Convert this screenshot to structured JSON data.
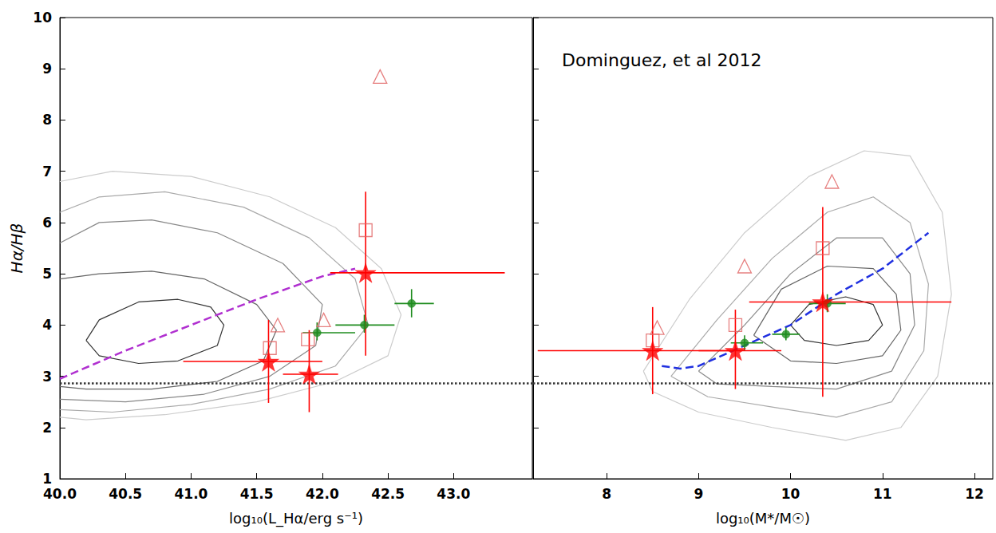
{
  "chart_data": [
    {
      "type": "scatter",
      "xlabel": "log₁₀(L_Hα/erg s⁻¹)",
      "ylabel": "Hα/Hβ",
      "xlim": [
        40.0,
        43.6
      ],
      "xticks": [
        {
          "value": 40,
          "label": "40.0"
        },
        40.5,
        {
          "value": 41,
          "label": "41.0"
        },
        41.5,
        {
          "value": 42,
          "label": "42.0"
        },
        42.5,
        {
          "value": 43,
          "label": "43.0"
        }
      ],
      "ylim": [
        1,
        10
      ],
      "yticks": [
        1,
        2,
        3,
        4,
        5,
        6,
        7,
        8,
        9,
        10
      ],
      "grid": false,
      "series": [
        {
          "type": "line",
          "line_style": "solid",
          "color": "#cccccc",
          "x": [
            40.0,
            40.4,
            41.0,
            41.6,
            42.1,
            42.45,
            42.6,
            42.5,
            42.1,
            41.5,
            40.8,
            40.2,
            40.0
          ],
          "values": [
            6.8,
            7.0,
            6.9,
            6.5,
            5.9,
            5.1,
            4.2,
            3.4,
            2.9,
            2.5,
            2.25,
            2.15,
            2.2
          ]
        },
        {
          "type": "line",
          "line_style": "solid",
          "color": "#aaaaaa",
          "x": [
            40.0,
            40.3,
            40.8,
            41.4,
            41.9,
            42.25,
            42.35,
            42.1,
            41.6,
            41.0,
            40.4,
            40.0
          ],
          "values": [
            6.2,
            6.5,
            6.6,
            6.3,
            5.7,
            4.9,
            4.0,
            3.2,
            2.75,
            2.45,
            2.3,
            2.35
          ]
        },
        {
          "type": "line",
          "line_style": "solid",
          "color": "#888888",
          "x": [
            40.0,
            40.3,
            40.7,
            41.2,
            41.7,
            42.0,
            41.95,
            41.6,
            41.1,
            40.5,
            40.0
          ],
          "values": [
            5.6,
            6.0,
            6.05,
            5.8,
            5.2,
            4.4,
            3.6,
            3.0,
            2.65,
            2.5,
            2.55
          ]
        },
        {
          "type": "line",
          "line_style": "solid",
          "color": "#666666",
          "x": [
            40.0,
            40.3,
            40.7,
            41.1,
            41.5,
            41.65,
            41.55,
            41.2,
            40.7,
            40.2,
            40.0
          ],
          "values": [
            4.9,
            5.0,
            5.05,
            4.9,
            4.4,
            3.9,
            3.3,
            2.9,
            2.75,
            2.75,
            2.8
          ]
        },
        {
          "type": "line",
          "line_style": "solid",
          "color": "#333333",
          "x": [
            40.2,
            40.3,
            40.6,
            40.9,
            41.15,
            41.25,
            41.2,
            40.9,
            40.6,
            40.3,
            40.2
          ],
          "values": [
            3.7,
            4.1,
            4.45,
            4.5,
            4.35,
            4.0,
            3.6,
            3.3,
            3.25,
            3.4,
            3.7
          ]
        },
        {
          "type": "line",
          "line_style": "dotted",
          "color": "#333333",
          "x": [
            40.0,
            43.6
          ],
          "values": [
            2.86,
            2.86
          ]
        },
        {
          "type": "line",
          "line_style": "dashed",
          "color": "#b030d0",
          "x": [
            40.0,
            40.5,
            41.0,
            41.5,
            42.0,
            42.25
          ],
          "values": [
            2.95,
            3.5,
            4.0,
            4.5,
            4.95,
            5.1
          ]
        },
        {
          "type": "scatter",
          "marker": "square_open",
          "color": "#e06060",
          "x": [
            41.6,
            41.89,
            42.33
          ],
          "values": [
            3.55,
            3.72,
            5.85
          ]
        },
        {
          "type": "scatter",
          "marker": "triangle_open",
          "color": "#e06060",
          "x": [
            41.66,
            42.01,
            42.44
          ],
          "values": [
            4.0,
            4.1,
            8.85
          ]
        },
        {
          "type": "scatter",
          "marker": "circle",
          "color": "#1e8c1e",
          "x": [
            41.96,
            42.32,
            42.68
          ],
          "values": [
            3.85,
            4.0,
            4.42
          ],
          "xerr": [
            [
              41.85,
              42.25
            ],
            [
              42.1,
              42.55
            ],
            [
              42.55,
              42.85
            ]
          ],
          "yerr": [
            [
              3.7,
              4.05
            ],
            [
              3.85,
              4.2
            ],
            [
              4.15,
              4.7
            ]
          ]
        },
        {
          "type": "scatter",
          "marker": "star",
          "color": "#ff0000",
          "x": [
            41.59,
            41.9,
            42.33
          ],
          "values": [
            3.29,
            3.04,
            5.02
          ],
          "xerr": [
            [
              40.94,
              42.0
            ],
            [
              41.7,
              42.12
            ],
            [
              42.06,
              43.39
            ]
          ],
          "yerr": [
            [
              2.48,
              4.1
            ],
            [
              2.3,
              3.9
            ],
            [
              3.4,
              6.6
            ]
          ]
        }
      ]
    },
    {
      "type": "scatter",
      "xlabel": "log₁₀(M*/M☉)",
      "annotation": "Dominguez, et al 2012",
      "xlim": [
        7.2,
        12.2
      ],
      "xticks": [
        8,
        9,
        10,
        11,
        12
      ],
      "ylim": [
        1,
        10
      ],
      "yticks": [
        1,
        2,
        3,
        4,
        5,
        6,
        7,
        8,
        9,
        10
      ],
      "grid": false,
      "tick_labels": "x",
      "series": [
        {
          "type": "line",
          "line_style": "solid",
          "color": "#cccccc",
          "x": [
            8.4,
            8.9,
            9.5,
            10.2,
            10.8,
            11.3,
            11.65,
            11.75,
            11.6,
            11.2,
            10.6,
            9.8,
            9.0,
            8.5,
            8.4
          ],
          "values": [
            3.1,
            4.5,
            5.8,
            6.9,
            7.4,
            7.3,
            6.2,
            4.6,
            3.0,
            2.0,
            1.75,
            2.0,
            2.3,
            2.7,
            3.1
          ]
        },
        {
          "type": "line",
          "line_style": "solid",
          "color": "#aaaaaa",
          "x": [
            8.7,
            9.2,
            9.8,
            10.4,
            10.9,
            11.3,
            11.5,
            11.45,
            11.1,
            10.5,
            9.8,
            9.1,
            8.7
          ],
          "values": [
            3.0,
            4.1,
            5.3,
            6.2,
            6.5,
            6.0,
            4.8,
            3.5,
            2.5,
            2.2,
            2.4,
            2.6,
            3.0
          ]
        },
        {
          "type": "line",
          "line_style": "solid",
          "color": "#888888",
          "x": [
            9.0,
            9.5,
            10.0,
            10.5,
            11.0,
            11.3,
            11.35,
            11.1,
            10.5,
            9.8,
            9.2,
            9.0
          ],
          "values": [
            3.1,
            4.0,
            5.0,
            5.7,
            5.7,
            5.0,
            4.0,
            3.1,
            2.75,
            2.8,
            2.85,
            3.1
          ]
        },
        {
          "type": "line",
          "line_style": "solid",
          "color": "#666666",
          "x": [
            9.6,
            9.9,
            10.4,
            10.9,
            11.15,
            11.2,
            11.0,
            10.5,
            10.0,
            9.6
          ],
          "values": [
            3.8,
            4.7,
            5.15,
            5.1,
            4.6,
            3.9,
            3.4,
            3.25,
            3.3,
            3.8
          ]
        },
        {
          "type": "line",
          "line_style": "solid",
          "color": "#333333",
          "x": [
            10.0,
            10.2,
            10.6,
            10.9,
            11.0,
            10.85,
            10.5,
            10.15,
            10.0
          ],
          "values": [
            4.0,
            4.4,
            4.55,
            4.4,
            4.0,
            3.7,
            3.6,
            3.7,
            4.0
          ]
        },
        {
          "type": "line",
          "line_style": "dotted",
          "color": "#333333",
          "x": [
            7.2,
            12.2
          ],
          "values": [
            2.86,
            2.86
          ]
        },
        {
          "type": "line",
          "line_style": "dashed",
          "color": "#2030e0",
          "x": [
            8.6,
            8.8,
            9.0,
            9.5,
            10.0,
            10.5,
            11.0,
            11.5
          ],
          "values": [
            3.2,
            3.15,
            3.2,
            3.6,
            4.0,
            4.6,
            5.1,
            5.8
          ]
        },
        {
          "type": "scatter",
          "marker": "square_open",
          "color": "#e06060",
          "x": [
            8.5,
            9.4,
            10.35
          ],
          "values": [
            3.7,
            4.0,
            5.5
          ]
        },
        {
          "type": "scatter",
          "marker": "triangle_open",
          "color": "#e06060",
          "x": [
            8.55,
            9.5,
            10.45
          ],
          "values": [
            3.95,
            5.15,
            6.8
          ]
        },
        {
          "type": "scatter",
          "marker": "circle",
          "color": "#1e8c1e",
          "x": [
            9.5,
            9.95,
            10.4
          ],
          "values": [
            3.65,
            3.82,
            4.42
          ],
          "xerr": [
            [
              9.35,
              9.7
            ],
            [
              9.8,
              10.1
            ],
            [
              10.2,
              10.6
            ]
          ],
          "yerr": [
            [
              3.5,
              3.8
            ],
            [
              3.7,
              3.95
            ],
            [
              4.25,
              4.6
            ]
          ]
        },
        {
          "type": "scatter",
          "marker": "star",
          "color": "#ff0000",
          "x": [
            8.5,
            9.4,
            10.35
          ],
          "values": [
            3.5,
            3.5,
            4.45
          ],
          "xerr": [
            [
              7.25,
              9.35
            ],
            [
              9.0,
              9.9
            ],
            [
              9.55,
              11.75
            ]
          ],
          "yerr": [
            [
              2.65,
              4.35
            ],
            [
              2.75,
              4.3
            ],
            [
              2.6,
              6.3
            ]
          ]
        }
      ]
    }
  ]
}
